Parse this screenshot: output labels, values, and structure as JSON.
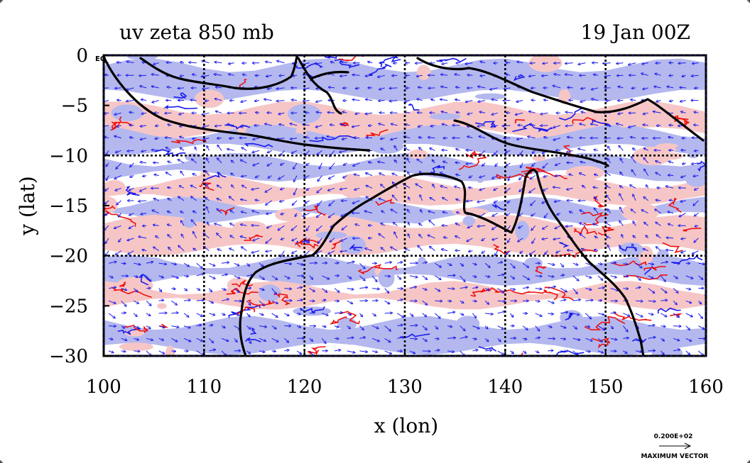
{
  "chart_data": {
    "type": "heatmap",
    "title_left": "uv zeta 850 mb",
    "title_right": "19 Jan 00Z",
    "xlabel": "x (lon)",
    "ylabel": "y (lat)",
    "xlim": [
      100,
      160
    ],
    "ylim": [
      -30,
      0
    ],
    "x_ticks": [
      100,
      110,
      120,
      130,
      140,
      150,
      160
    ],
    "y_ticks": [
      0,
      -5,
      -10,
      -15,
      -20,
      -25,
      -30
    ],
    "x_tick_labels": [
      "100",
      "110",
      "120",
      "130",
      "140",
      "150",
      "160"
    ],
    "y_tick_labels": [
      "0",
      "−5",
      "−10",
      "−15",
      "−20",
      "−25",
      "−30"
    ],
    "eq_label": "EQ",
    "grid": true,
    "grid_lon": [
      110,
      120,
      130,
      140,
      150
    ],
    "grid_lat": [
      -10,
      -20
    ],
    "vector_key": {
      "value": "0.200E+02",
      "label": "MAXIMUM VECTOR"
    },
    "colors": {
      "positive_fill": "#f6c6c6",
      "negative_fill": "#b4b8ee",
      "positive_contour": "#ee1111",
      "negative_contour": "#1a1aee",
      "vector": "#1a1aee",
      "coastline": "#000000"
    }
  }
}
